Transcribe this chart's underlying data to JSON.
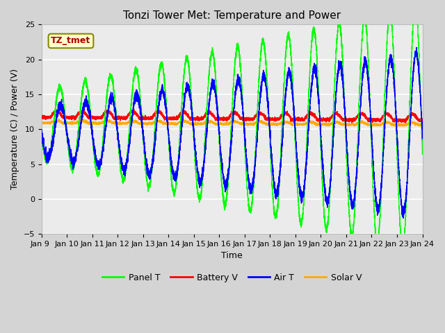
{
  "title": "Tonzi Tower Met: Temperature and Power",
  "xlabel": "Time",
  "ylabel": "Temperature (C) / Power (V)",
  "xlim": [
    0,
    15
  ],
  "ylim": [
    -5,
    25
  ],
  "yticks": [
    -5,
    0,
    5,
    10,
    15,
    20,
    25
  ],
  "xtick_labels": [
    "Jan 9 ",
    "Jan 10",
    "Jan 11",
    "Jan 12",
    "Jan 13",
    "Jan 14",
    "Jan 15",
    "Jan 16",
    "Jan 17",
    "Jan 18",
    "Jan 19",
    "Jan 20",
    "Jan 21",
    "Jan 22",
    "Jan 23",
    "Jan 24"
  ],
  "xtick_positions": [
    0,
    1,
    2,
    3,
    4,
    5,
    6,
    7,
    8,
    9,
    10,
    11,
    12,
    13,
    14,
    15
  ],
  "panel_color": "#00ff00",
  "battery_color": "#ff0000",
  "air_color": "#0000ff",
  "solar_color": "#ffaa00",
  "fig_bg_color": "#d4d4d4",
  "plot_bg_color": "#ebebeb",
  "annotation_text": "TZ_tmet",
  "annotation_box_facecolor": "#ffffcc",
  "annotation_text_color": "#aa0000",
  "annotation_edge_color": "#888800",
  "legend_labels": [
    "Panel T",
    "Battery V",
    "Air T",
    "Solar V"
  ],
  "legend_colors": [
    "#00ff00",
    "#ff0000",
    "#0000ff",
    "#ffaa00"
  ],
  "title_fontsize": 11,
  "axis_fontsize": 9,
  "tick_fontsize": 8,
  "legend_fontsize": 9
}
